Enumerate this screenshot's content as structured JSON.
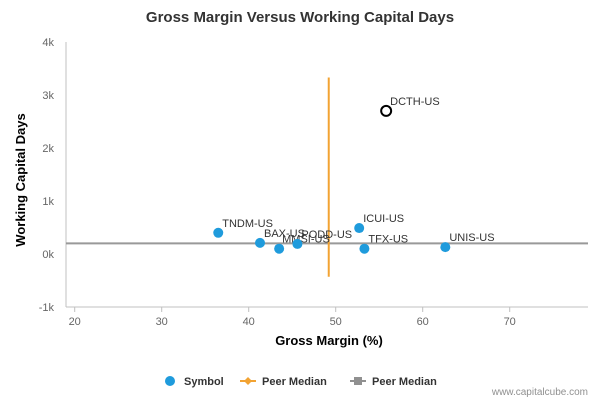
{
  "chart_data": {
    "type": "scatter",
    "title": "Gross Margin Versus Working Capital Days",
    "xlabel": "Gross Margin (%)",
    "ylabel": "Working Capital Days",
    "xlim": [
      19,
      79
    ],
    "ylim": [
      -1000,
      4000
    ],
    "x_ticks": [
      {
        "value": 20,
        "label": "20"
      },
      {
        "value": 30,
        "label": "30"
      },
      {
        "value": 40,
        "label": "40"
      },
      {
        "value": 50,
        "label": "50"
      },
      {
        "value": 60,
        "label": "60"
      },
      {
        "value": 70,
        "label": "70"
      }
    ],
    "y_ticks": [
      {
        "value": -1000,
        "label": "-1k"
      },
      {
        "value": 0,
        "label": "0k"
      },
      {
        "value": 1000,
        "label": "1k"
      },
      {
        "value": 2000,
        "label": "2k"
      },
      {
        "value": 3000,
        "label": "3k"
      },
      {
        "value": 4000,
        "label": "4k"
      }
    ],
    "points": [
      {
        "label": "TNDM-US",
        "x": 36.5,
        "y": 400,
        "highlight": false
      },
      {
        "label": "BAX-US",
        "x": 41.3,
        "y": 210,
        "highlight": false
      },
      {
        "label": "MMSI-US",
        "x": 43.5,
        "y": 100,
        "highlight": false
      },
      {
        "label": "PODD-US",
        "x": 45.6,
        "y": 190,
        "highlight": false
      },
      {
        "label": "ICUI-US",
        "x": 52.7,
        "y": 490,
        "highlight": false
      },
      {
        "label": "TFX-US",
        "x": 53.3,
        "y": 100,
        "highlight": false
      },
      {
        "label": "UNIS-US",
        "x": 62.6,
        "y": 130,
        "highlight": false
      },
      {
        "label": "DCTH-US",
        "x": 55.8,
        "y": 2700,
        "highlight": true
      }
    ],
    "peer_median_x": {
      "value": 49.2,
      "y_range": [
        -430,
        3330
      ]
    },
    "peer_median_y": {
      "value": 200
    },
    "legend": {
      "placement": "bottom-center",
      "items": [
        {
          "label": "Symbol",
          "color": "#1f9bdc",
          "marker": "circle"
        },
        {
          "label": "Peer Median",
          "color": "#f2a333",
          "marker": "line-diamond"
        },
        {
          "label": "Peer Median",
          "color": "#909090",
          "marker": "line-square"
        }
      ]
    },
    "colors": {
      "point": "#1f9bdc",
      "highlight_stroke": "#000000",
      "median_x": "#f2a333",
      "median_y": "#999999",
      "grid": "#d8d8d8"
    },
    "grid": {
      "x": false,
      "y": false
    }
  },
  "credit": "www.capitalcube.com"
}
